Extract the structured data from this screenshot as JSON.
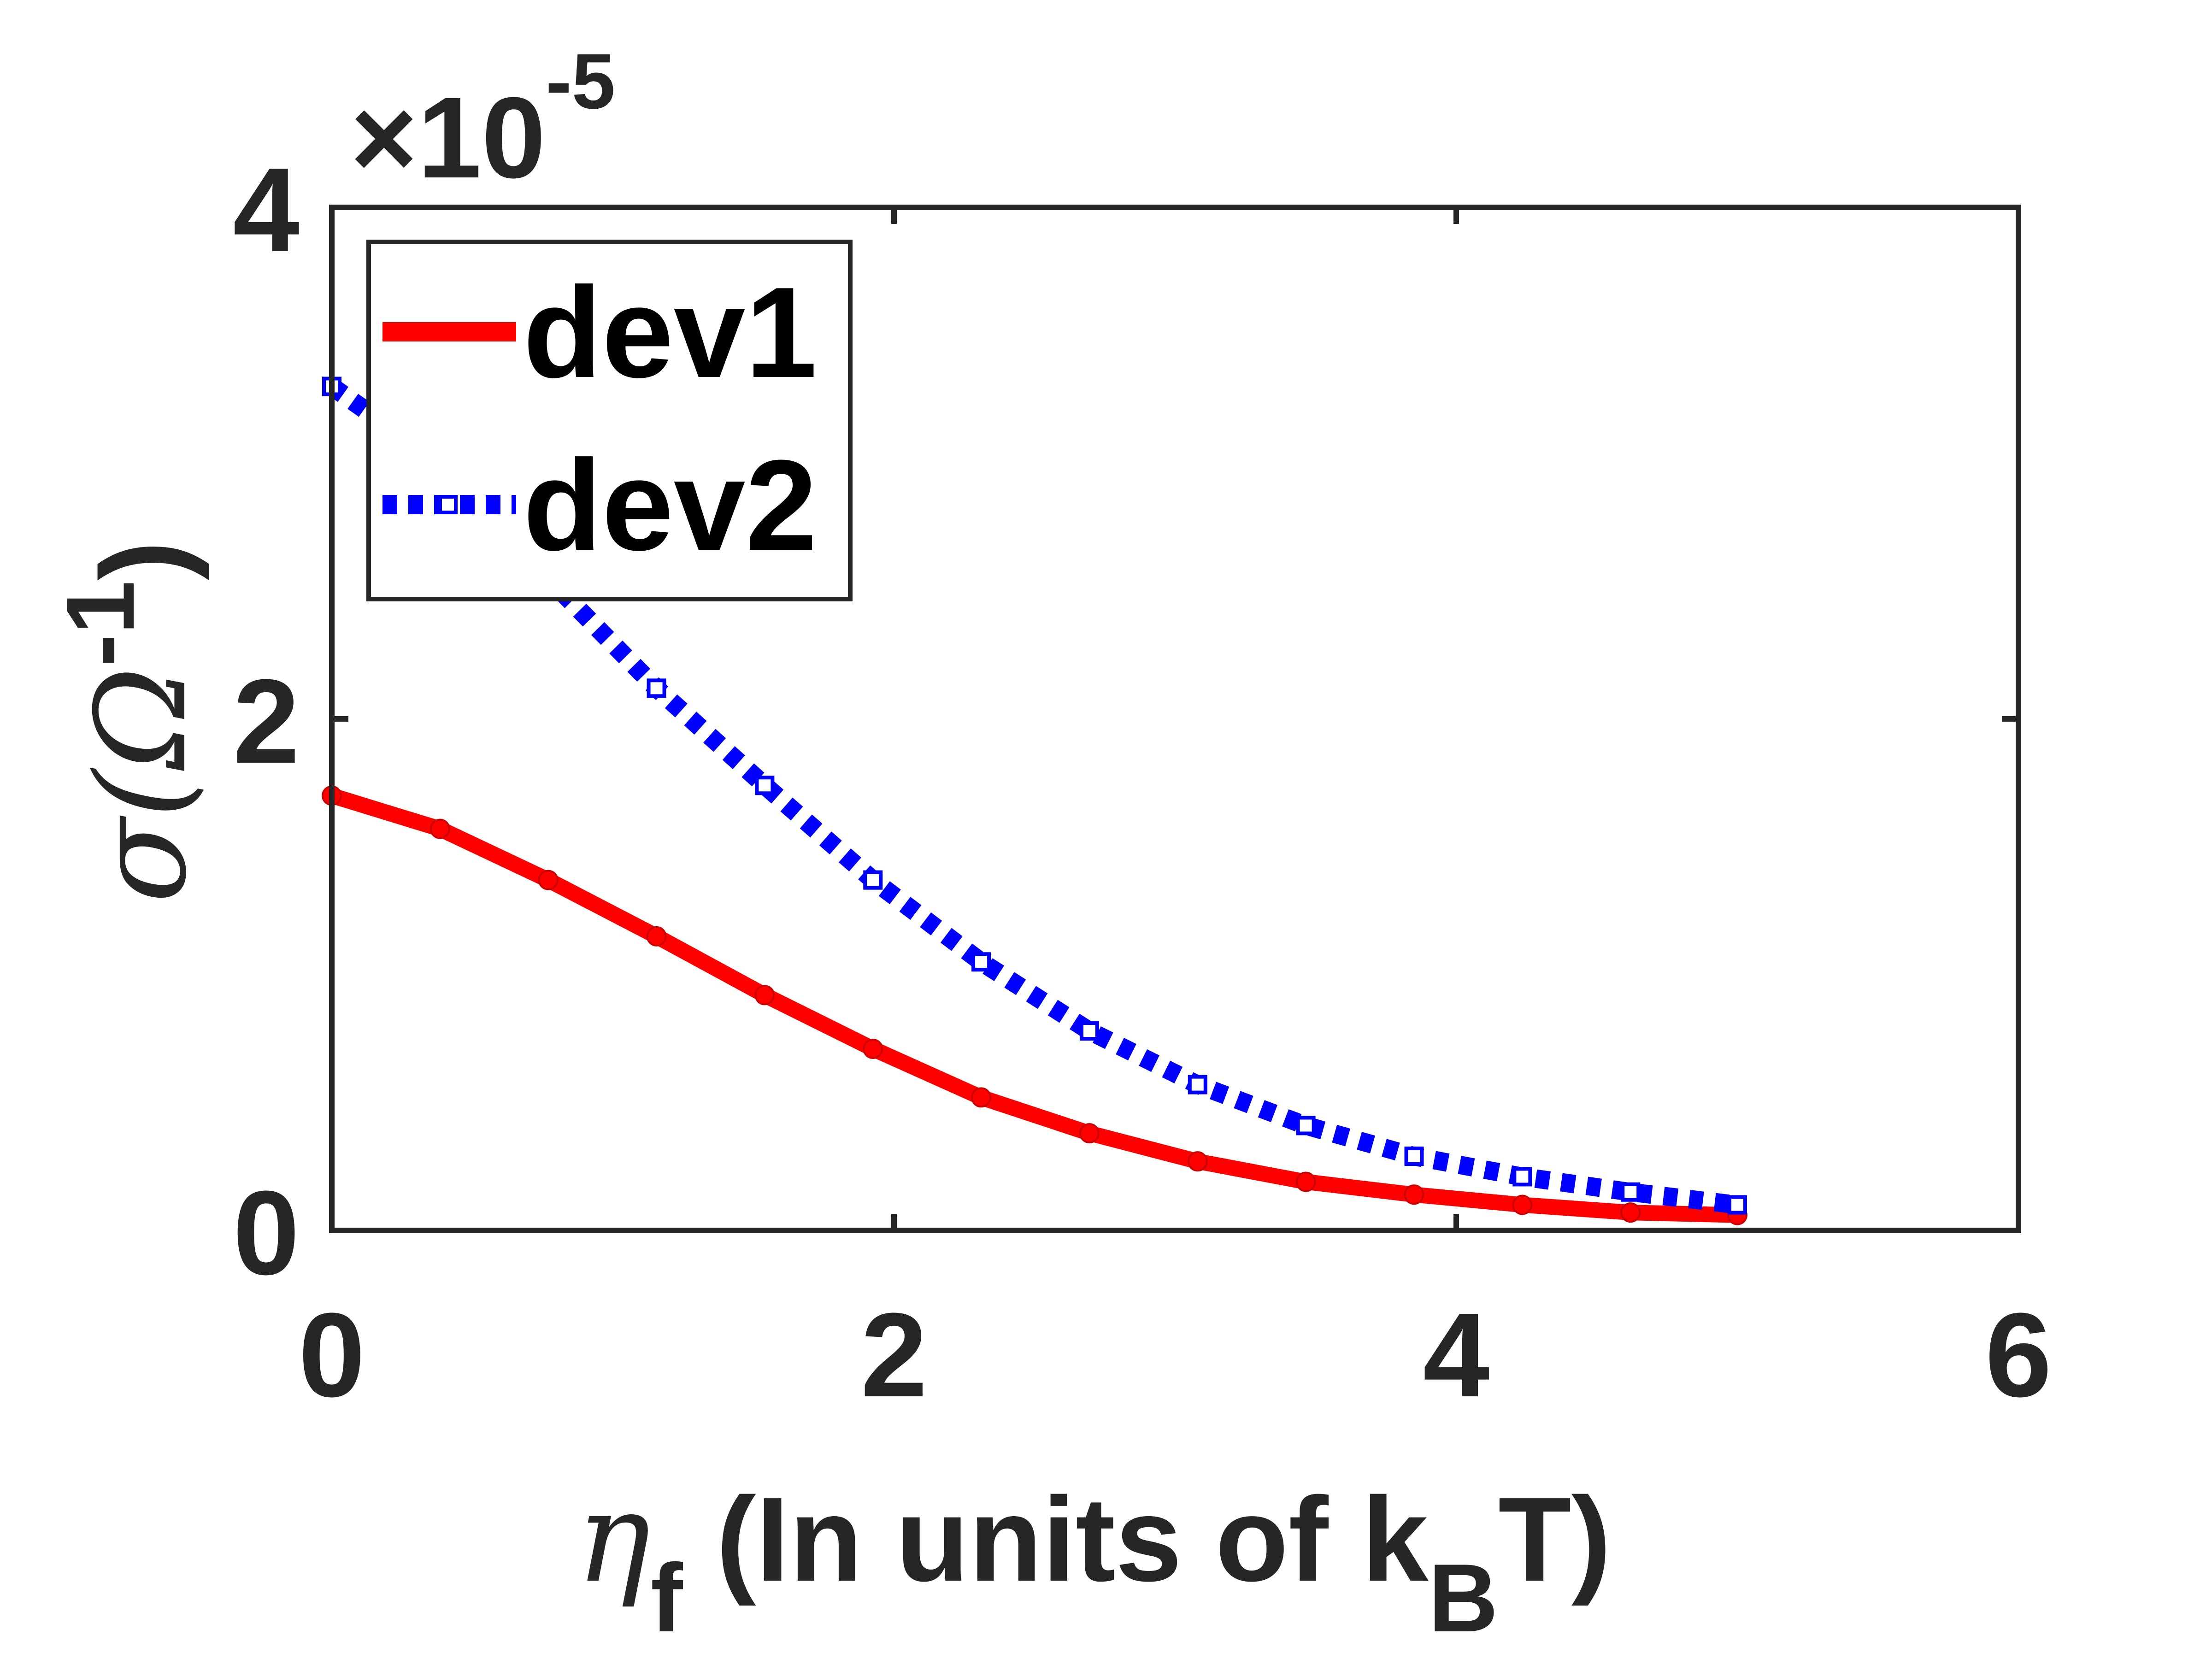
{
  "chart_data": {
    "type": "line",
    "title": "",
    "xlabel": {
      "symbol": "η",
      "subscript": "f",
      "text": " (In units of k",
      "sub2": "B",
      "tail": "T)"
    },
    "ylabel": {
      "symbol": "σ",
      "text": "(Ω",
      "sup": "-1",
      "tail": ")"
    },
    "y_multiplier": {
      "prefix": "×10",
      "exponent": "-5"
    },
    "xlim": [
      0,
      6
    ],
    "ylim": [
      0,
      4
    ],
    "x_ticks": [
      "0",
      "2",
      "4",
      "6"
    ],
    "y_ticks": [
      "0",
      "2",
      "4"
    ],
    "legend_position": "top-left",
    "grid": false,
    "x": [
      0,
      0.385,
      0.77,
      1.155,
      1.54,
      1.925,
      2.31,
      2.695,
      3.08,
      3.465,
      3.85,
      4.235,
      4.62,
      5.0
    ],
    "series": [
      {
        "name": "dev1",
        "color": "#ff0000",
        "style": "solid",
        "marker": "dot",
        "values": [
          1.7,
          1.57,
          1.37,
          1.15,
          0.92,
          0.71,
          0.52,
          0.38,
          0.27,
          0.19,
          0.14,
          0.1,
          0.07,
          0.06
        ]
      },
      {
        "name": "dev2",
        "color": "#0000ff",
        "style": "dotted",
        "marker": "square",
        "values": [
          3.3,
          3.0,
          2.55,
          2.12,
          1.74,
          1.37,
          1.05,
          0.78,
          0.57,
          0.41,
          0.29,
          0.21,
          0.15,
          0.1
        ]
      }
    ]
  }
}
